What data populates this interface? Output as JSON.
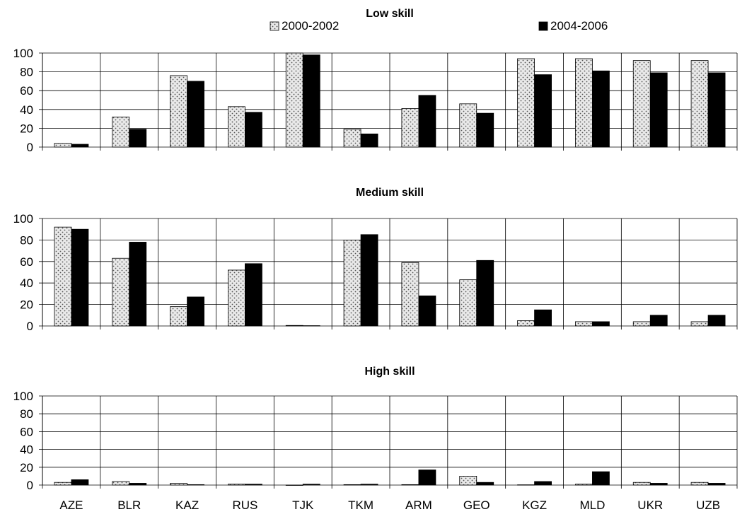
{
  "legend": {
    "items": [
      {
        "label": "2000-2002",
        "pattern": "dotted"
      },
      {
        "label": "2004-2006",
        "pattern": "solid-black"
      }
    ]
  },
  "chart_data": [
    {
      "type": "bar",
      "title": "Low skill",
      "categories": [
        "AZE",
        "BLR",
        "KAZ",
        "RUS",
        "TJK",
        "TKM",
        "ARM",
        "GEO",
        "KGZ",
        "MLD",
        "UKR",
        "UZB"
      ],
      "ylim": [
        0,
        100
      ],
      "yticks": [
        0,
        20,
        40,
        60,
        80,
        100
      ],
      "grid": true,
      "series": [
        {
          "name": "2000-2002",
          "values": [
            4,
            32,
            76,
            43,
            100,
            19,
            41,
            46,
            94,
            94,
            92,
            92
          ]
        },
        {
          "name": "2004-2006",
          "values": [
            3,
            19,
            70,
            37,
            98,
            14,
            55,
            36,
            77,
            81,
            79,
            79
          ]
        }
      ]
    },
    {
      "type": "bar",
      "title": "Medium skill",
      "categories": [
        "AZE",
        "BLR",
        "KAZ",
        "RUS",
        "TJK",
        "TKM",
        "ARM",
        "GEO",
        "KGZ",
        "MLD",
        "UKR",
        "UZB"
      ],
      "ylim": [
        0,
        100
      ],
      "yticks": [
        0,
        20,
        40,
        60,
        80,
        100
      ],
      "grid": true,
      "series": [
        {
          "name": "2000-2002",
          "values": [
            92,
            63,
            18,
            52,
            0.5,
            80,
            59,
            43,
            5,
            4,
            4,
            4
          ]
        },
        {
          "name": "2004-2006",
          "values": [
            90,
            78,
            27,
            58,
            0.3,
            85,
            28,
            61,
            15,
            4,
            10,
            10
          ]
        }
      ]
    },
    {
      "type": "bar",
      "title": "High skill",
      "categories": [
        "AZE",
        "BLR",
        "KAZ",
        "RUS",
        "TJK",
        "TKM",
        "ARM",
        "GEO",
        "KGZ",
        "MLD",
        "UKR",
        "UZB"
      ],
      "ylim": [
        0,
        100
      ],
      "yticks": [
        0,
        20,
        40,
        60,
        80,
        100
      ],
      "grid": true,
      "series": [
        {
          "name": "2000-2002",
          "values": [
            3,
            4,
            2,
            1,
            0,
            0.5,
            0.5,
            10,
            0.3,
            1,
            3,
            3
          ]
        },
        {
          "name": "2004-2006",
          "values": [
            6,
            2,
            0.5,
            1,
            1,
            1,
            17,
            3,
            4,
            15,
            2,
            2
          ]
        }
      ]
    }
  ]
}
